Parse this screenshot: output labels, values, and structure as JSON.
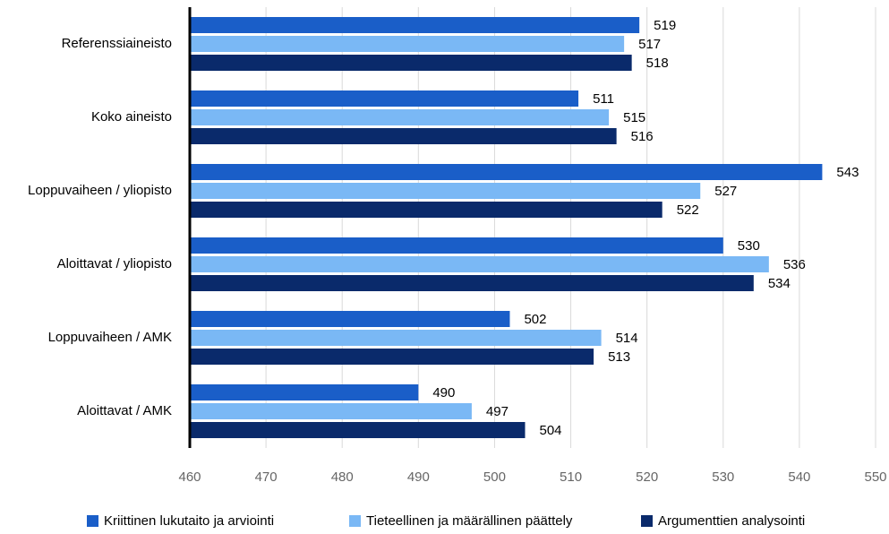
{
  "chart_data": {
    "type": "hbar",
    "categories": [
      "Referenssiaineisto",
      "Koko aineisto",
      "Loppuvaiheen / yliopisto",
      "Aloittavat / yliopisto",
      "Loppuvaiheen / AMK",
      "Aloittavat / AMK"
    ],
    "series": [
      {
        "name": "Kriittinen lukutaito ja arviointi",
        "color": "#1a5ec8",
        "values": [
          519,
          511,
          543,
          530,
          502,
          490
        ]
      },
      {
        "name": "Tieteellinen ja määrällinen päättely",
        "color": "#7ab8f5",
        "values": [
          517,
          515,
          527,
          536,
          514,
          497
        ]
      },
      {
        "name": "Argumenttien analysointi",
        "color": "#0a2a6b",
        "values": [
          518,
          516,
          522,
          534,
          513,
          504
        ]
      }
    ],
    "xlim": [
      460,
      550
    ],
    "xticks": [
      460,
      470,
      480,
      490,
      500,
      510,
      520,
      530,
      540,
      550
    ],
    "grid": true
  }
}
